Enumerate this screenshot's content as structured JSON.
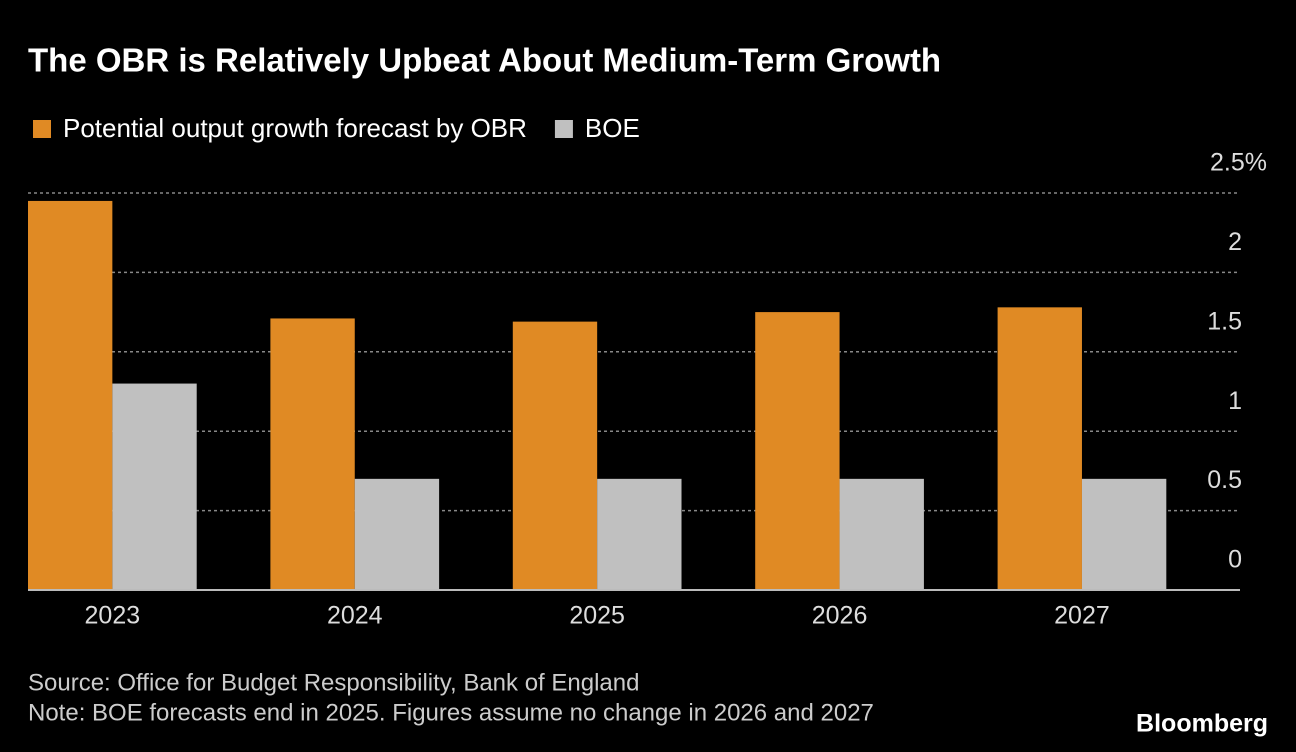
{
  "chart_data": {
    "type": "bar",
    "title": "The OBR is Relatively Upbeat About Medium-Term Growth",
    "categories": [
      "2023",
      "2024",
      "2025",
      "2026",
      "2027"
    ],
    "series": [
      {
        "name": "Potential output growth forecast by OBR",
        "color": "#e08a24",
        "values": [
          2.45,
          1.71,
          1.69,
          1.75,
          1.78
        ]
      },
      {
        "name": "BOE",
        "color": "#c0c0c0",
        "values": [
          1.3,
          0.7,
          0.7,
          0.7,
          0.7
        ]
      }
    ],
    "ylim": [
      0,
      2.5
    ],
    "yticks": [
      0,
      0.5,
      1.0,
      1.5,
      2.0,
      {
        "value": 2.5,
        "label": "2.5%"
      }
    ],
    "grid": true,
    "source": "Source: Office for Budget Responsibility, Bank of England",
    "note": "Note: BOE forecasts end in 2025. Figures assume no change in 2026 and 2027",
    "brand": "Bloomberg"
  }
}
